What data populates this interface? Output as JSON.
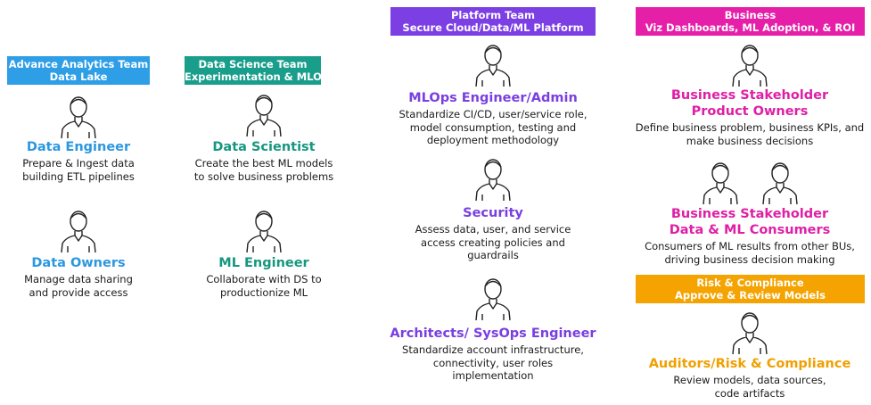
{
  "teams": [
    {
      "header": [
        "Advance Analytics Team",
        "Data Lake"
      ],
      "roles": [
        {
          "title": [
            "Data Engineer"
          ],
          "description": [
            "Prepare & Ingest data",
            "building ETL pipelines"
          ]
        },
        {
          "title": [
            "Data Owners"
          ],
          "description": [
            "Manage data sharing",
            "and provide access"
          ]
        }
      ]
    },
    {
      "header": [
        "Data Science Team",
        "Experimentation & MLOps"
      ],
      "roles": [
        {
          "title": [
            "Data Scientist"
          ],
          "description": [
            "Create the best ML models",
            "to solve business problems"
          ]
        },
        {
          "title": [
            "ML Engineer"
          ],
          "description": [
            "Collaborate with DS to",
            "productionize ML"
          ]
        }
      ]
    },
    {
      "header": [
        "Platform Team",
        "Secure Cloud/Data/ML Platform"
      ],
      "roles": [
        {
          "title": [
            "MLOps Engineer/Admin"
          ],
          "description": [
            "Standardize CI/CD, user/service role,",
            "model consumption, testing and",
            "deployment methodology"
          ]
        },
        {
          "title": [
            "Security"
          ],
          "description": [
            "Assess data, user, and service",
            "access creating policies and",
            "guardrails"
          ]
        },
        {
          "title": [
            "Architects/ SysOps Engineer"
          ],
          "description": [
            "Standardize account infrastructure,",
            "connectivity, user roles",
            "implementation"
          ]
        }
      ]
    },
    {
      "header": [
        "Business",
        "Viz Dashboards, ML Adoption, & ROI"
      ],
      "roles": [
        {
          "title": [
            "Business Stakeholder",
            "Product Owners"
          ],
          "description": [
            "Define business problem, business KPIs, and",
            "make business decisions"
          ]
        },
        {
          "title": [
            "Business Stakeholder",
            "Data & ML Consumers"
          ],
          "description": [
            "Consumers of ML results from other BUs,",
            "driving business decision making"
          ]
        }
      ]
    },
    {
      "header": [
        "Risk & Compliance",
        "Approve & Review Models"
      ],
      "roles": [
        {
          "title": [
            "Auditors/Risk & Compliance"
          ],
          "description": [
            "Review models, data sources,",
            "code artifacts"
          ]
        }
      ]
    }
  ]
}
